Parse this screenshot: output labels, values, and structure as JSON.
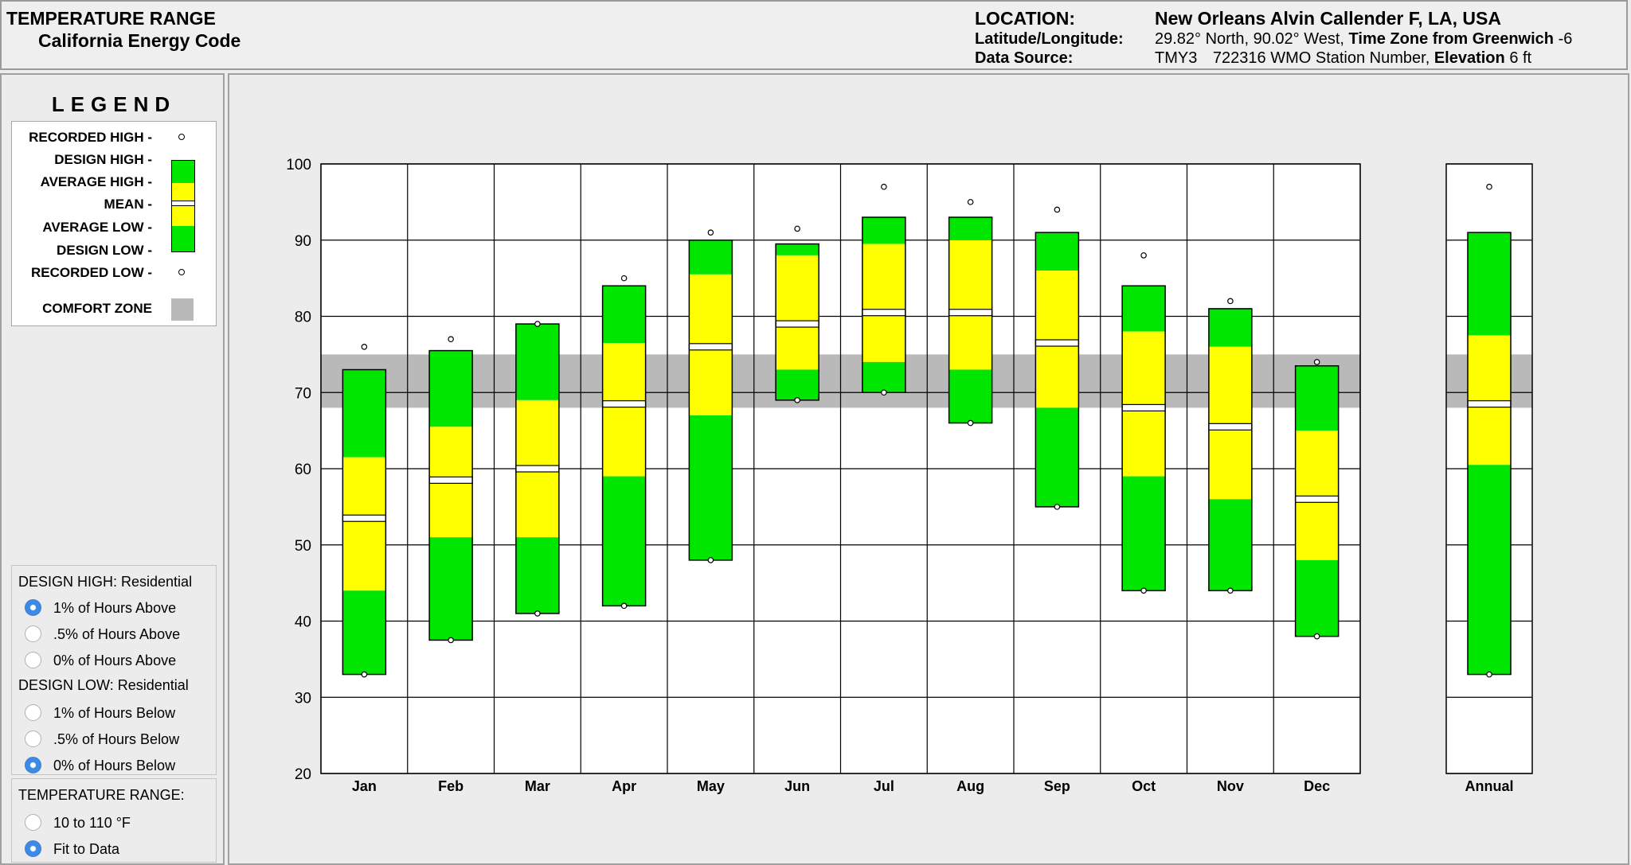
{
  "header": {
    "title": "TEMPERATURE RANGE",
    "subtitle": "California Energy Code",
    "location_label": "LOCATION:",
    "location_value": "New Orleans Alvin Callender F, LA, USA",
    "latlon_label": "Latitude/Longitude:",
    "latlon_value": "29.82° North, 90.02° West,",
    "timezone_label": "Time Zone from Greenwich",
    "timezone_value": "-6",
    "source_label": "Data Source:",
    "source_value": "TMY3",
    "station_value": "722316 WMO Station Number,",
    "elevation_label": "Elevation",
    "elevation_value": "6 ft"
  },
  "legend": {
    "title": "LEGEND",
    "recorded_high": "RECORDED HIGH -",
    "design_high": "DESIGN HIGH -",
    "average_high": "AVERAGE HIGH -",
    "mean": "MEAN -",
    "average_low": "AVERAGE LOW -",
    "design_low": "DESIGN LOW -",
    "recorded_low": "RECORDED LOW -",
    "comfort_zone": "COMFORT ZONE"
  },
  "design_high_panel": {
    "title": "DESIGN HIGH:  Residential",
    "options": [
      "1% of Hours Above",
      ".5% of Hours Above",
      "0% of Hours Above"
    ],
    "selected": 0
  },
  "design_low_panel": {
    "title": "DESIGN LOW:  Residential",
    "options": [
      "1% of Hours Below",
      ".5% of Hours Below",
      "0% of Hours Below"
    ],
    "selected": 2
  },
  "temp_range_panel": {
    "title": "TEMPERATURE RANGE:",
    "options": [
      "10 to 110 °F",
      "Fit to Data"
    ],
    "selected": 1
  },
  "colors": {
    "design_band": "#00e600",
    "average_band": "#ffff00",
    "comfort_zone": "#b9b9b9",
    "radio_selected": "#3d8ae6"
  },
  "chart_data": {
    "type": "range-bar",
    "ylim": [
      20,
      100
    ],
    "yticks": [
      20,
      30,
      40,
      50,
      60,
      70,
      80,
      90,
      100
    ],
    "comfort_zone": [
      68,
      75
    ],
    "grid": true,
    "categories": [
      "Jan",
      "Feb",
      "Mar",
      "Apr",
      "May",
      "Jun",
      "Jul",
      "Aug",
      "Sep",
      "Oct",
      "Nov",
      "Dec",
      "Annual"
    ],
    "recorded_high": [
      76,
      77,
      79,
      85,
      91,
      91.5,
      97,
      95,
      94,
      88,
      82,
      74,
      97
    ],
    "design_high": [
      73,
      75.5,
      79,
      84,
      90,
      89.5,
      93,
      93,
      91,
      84,
      81,
      73.5,
      91
    ],
    "average_high": [
      61.5,
      65.5,
      69,
      76.5,
      85.5,
      88,
      89.5,
      90,
      86,
      78,
      76,
      65,
      77.5
    ],
    "mean": [
      53.5,
      58.5,
      60,
      68.5,
      76,
      79,
      80.5,
      80.5,
      76.5,
      68,
      65.5,
      56,
      68.5
    ],
    "average_low": [
      44,
      51,
      51,
      59,
      67,
      73,
      74,
      73,
      68,
      59,
      56,
      48,
      60.5
    ],
    "design_low": [
      33,
      37.5,
      41,
      42,
      48,
      69,
      70,
      66,
      55,
      44,
      44,
      38,
      33
    ],
    "recorded_low": [
      33,
      37.5,
      41,
      42,
      48,
      69,
      70,
      66,
      55,
      44,
      44,
      38,
      33
    ]
  }
}
